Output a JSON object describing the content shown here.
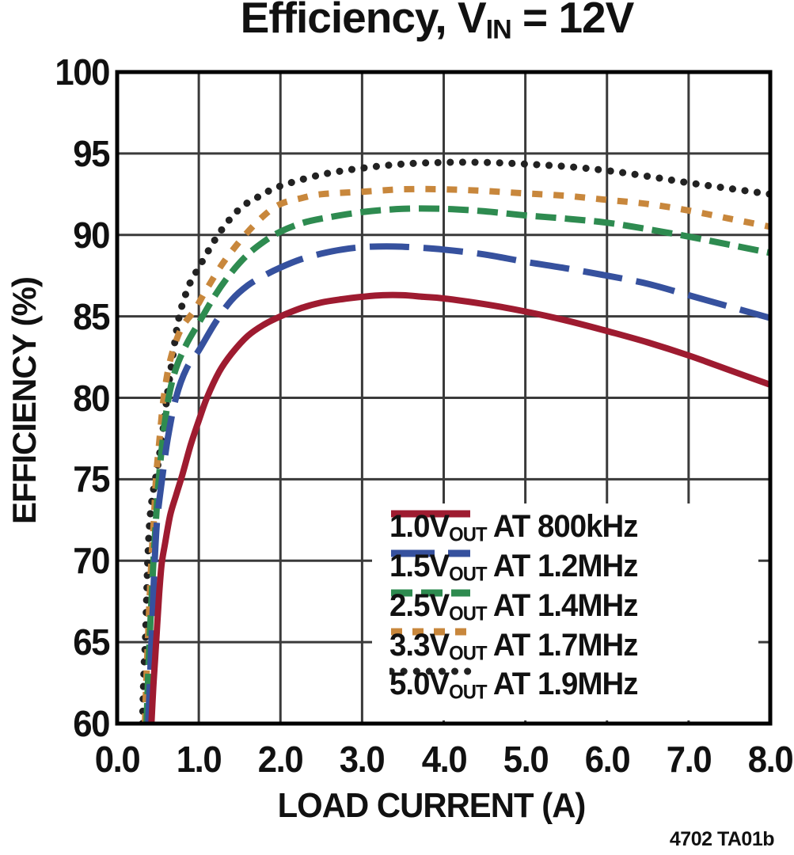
{
  "title": {
    "prefix": "Efficiency, V",
    "sub": "IN",
    "suffix": " = 12V"
  },
  "watermark": "4702 TA01b",
  "colors": {
    "frame": "#000000",
    "grid": "#3a3a3a",
    "background": "#ffffff"
  },
  "chart_data": {
    "type": "line",
    "title": "Efficiency, VIN = 12V",
    "xlabel": "LOAD CURRENT (A)",
    "ylabel": "EFFICIENCY (%)",
    "xlim": [
      0.0,
      8.0
    ],
    "ylim": [
      60,
      100
    ],
    "x_ticks": [
      "0.0",
      "1.0",
      "2.0",
      "3.0",
      "4.0",
      "5.0",
      "6.0",
      "7.0",
      "8.0"
    ],
    "y_ticks": [
      "100",
      "95",
      "90",
      "85",
      "80",
      "75",
      "70",
      "65",
      "60"
    ],
    "grid": true,
    "legend_position": "lower right",
    "series": [
      {
        "name": "1.0VOUT AT 800kHz",
        "label": {
          "v": "1.0V",
          "sub": "OUT",
          "rest": " AT 800kHz"
        },
        "color": "#9E1B30",
        "dash": "solid",
        "points": [
          [
            0.42,
            60
          ],
          [
            0.44,
            62
          ],
          [
            0.465,
            64
          ],
          [
            0.49,
            66
          ],
          [
            0.515,
            68
          ],
          [
            0.545,
            69.8
          ],
          [
            0.585,
            71
          ],
          [
            0.65,
            72.8
          ],
          [
            0.72,
            74
          ],
          [
            0.8,
            75.3
          ],
          [
            0.9,
            77.1
          ],
          [
            1.0,
            78.6
          ],
          [
            1.1,
            80
          ],
          [
            1.25,
            81.6
          ],
          [
            1.4,
            82.7
          ],
          [
            1.6,
            83.8
          ],
          [
            1.8,
            84.5
          ],
          [
            2.0,
            85.0
          ],
          [
            2.25,
            85.5
          ],
          [
            2.5,
            85.85
          ],
          [
            2.75,
            86.05
          ],
          [
            3.0,
            86.2
          ],
          [
            3.25,
            86.3
          ],
          [
            3.5,
            86.3
          ],
          [
            3.75,
            86.2
          ],
          [
            4.0,
            86.1
          ],
          [
            4.5,
            85.75
          ],
          [
            5.0,
            85.3
          ],
          [
            5.5,
            84.75
          ],
          [
            6.0,
            84.1
          ],
          [
            6.5,
            83.4
          ],
          [
            7.0,
            82.6
          ],
          [
            7.5,
            81.7
          ],
          [
            8.0,
            80.8
          ]
        ]
      },
      {
        "name": "1.5VOUT AT 1.2MHz",
        "label": {
          "v": "1.5V",
          "sub": "OUT",
          "rest": " AT 1.2MHz"
        },
        "color": "#36519E",
        "dash": "long-dash",
        "points": [
          [
            0.38,
            60
          ],
          [
            0.4,
            62.5
          ],
          [
            0.42,
            65
          ],
          [
            0.44,
            67.5
          ],
          [
            0.46,
            70
          ],
          [
            0.49,
            72.5
          ],
          [
            0.55,
            75
          ],
          [
            0.62,
            77.5
          ],
          [
            0.72,
            80
          ],
          [
            0.85,
            81.8
          ],
          [
            1.0,
            82.9
          ],
          [
            1.2,
            84.6
          ],
          [
            1.4,
            86.0
          ],
          [
            1.6,
            86.9
          ],
          [
            1.8,
            87.5
          ],
          [
            2.0,
            88.0
          ],
          [
            2.25,
            88.5
          ],
          [
            2.5,
            88.85
          ],
          [
            2.75,
            89.1
          ],
          [
            3.0,
            89.25
          ],
          [
            3.3,
            89.3
          ],
          [
            3.6,
            89.25
          ],
          [
            4.0,
            89.1
          ],
          [
            4.5,
            88.8
          ],
          [
            5.0,
            88.35
          ],
          [
            5.5,
            87.95
          ],
          [
            6.0,
            87.5
          ],
          [
            6.5,
            87.0
          ],
          [
            7.0,
            86.3
          ],
          [
            7.5,
            85.6
          ],
          [
            8.0,
            84.9
          ]
        ]
      },
      {
        "name": "2.5VOUT AT 1.4MHz",
        "label": {
          "v": "2.5V",
          "sub": "OUT",
          "rest": " AT 1.4MHz"
        },
        "color": "#2E8B50",
        "dash": "dash",
        "points": [
          [
            0.36,
            60
          ],
          [
            0.38,
            63
          ],
          [
            0.4,
            65.5
          ],
          [
            0.425,
            68
          ],
          [
            0.45,
            70.5
          ],
          [
            0.475,
            72.5
          ],
          [
            0.51,
            75
          ],
          [
            0.56,
            77.5
          ],
          [
            0.63,
            80
          ],
          [
            0.72,
            81.8
          ],
          [
            0.85,
            83.3
          ],
          [
            1.0,
            84.6
          ],
          [
            1.2,
            86.3
          ],
          [
            1.4,
            87.7
          ],
          [
            1.6,
            88.8
          ],
          [
            1.8,
            89.6
          ],
          [
            2.0,
            90.2
          ],
          [
            2.25,
            90.7
          ],
          [
            2.5,
            91.0
          ],
          [
            3.0,
            91.4
          ],
          [
            3.5,
            91.6
          ],
          [
            4.0,
            91.6
          ],
          [
            4.5,
            91.45
          ],
          [
            5.0,
            91.2
          ],
          [
            5.5,
            91.0
          ],
          [
            6.0,
            90.75
          ],
          [
            6.5,
            90.35
          ],
          [
            7.0,
            89.9
          ],
          [
            7.5,
            89.4
          ],
          [
            8.0,
            88.9
          ]
        ]
      },
      {
        "name": "3.3VOUT AT 1.7MHz",
        "label": {
          "v": "3.3V",
          "sub": "OUT",
          "rest": " AT 1.7MHz"
        },
        "color": "#C8873C",
        "dash": "short-dash",
        "points": [
          [
            0.34,
            60
          ],
          [
            0.36,
            63
          ],
          [
            0.38,
            65.5
          ],
          [
            0.4,
            68
          ],
          [
            0.425,
            70.5
          ],
          [
            0.45,
            72.5
          ],
          [
            0.475,
            75
          ],
          [
            0.52,
            77.5
          ],
          [
            0.57,
            80
          ],
          [
            0.65,
            82.3
          ],
          [
            0.78,
            84.2
          ],
          [
            0.95,
            85.4
          ],
          [
            1.1,
            86.7
          ],
          [
            1.3,
            88.3
          ],
          [
            1.55,
            89.9
          ],
          [
            1.8,
            91.2
          ],
          [
            2.0,
            91.9
          ],
          [
            2.25,
            92.25
          ],
          [
            2.5,
            92.5
          ],
          [
            3.0,
            92.65
          ],
          [
            3.5,
            92.8
          ],
          [
            4.0,
            92.8
          ],
          [
            4.5,
            92.7
          ],
          [
            5.0,
            92.55
          ],
          [
            5.5,
            92.4
          ],
          [
            6.0,
            92.15
          ],
          [
            6.5,
            91.9
          ],
          [
            7.0,
            91.5
          ],
          [
            7.5,
            91.0
          ],
          [
            8.0,
            90.5
          ]
        ]
      },
      {
        "name": "5.0VOUT AT 1.9MHz",
        "label": {
          "v": "5.0V",
          "sub": "OUT",
          "rest": " AT 1.9MHz"
        },
        "color": "#222222",
        "dash": "dot",
        "points": [
          [
            0.31,
            60
          ],
          [
            0.33,
            63.5
          ],
          [
            0.345,
            65
          ],
          [
            0.36,
            67.5
          ],
          [
            0.375,
            70
          ],
          [
            0.4,
            72.5
          ],
          [
            0.44,
            74.2
          ],
          [
            0.49,
            75.6
          ],
          [
            0.55,
            77.6
          ],
          [
            0.61,
            80
          ],
          [
            0.68,
            82.5
          ],
          [
            0.76,
            85
          ],
          [
            0.88,
            86.9
          ],
          [
            1.0,
            88.0
          ],
          [
            1.25,
            90.1
          ],
          [
            1.5,
            91.6
          ],
          [
            1.75,
            92.4
          ],
          [
            2.0,
            93.0
          ],
          [
            2.5,
            93.7
          ],
          [
            3.0,
            94.1
          ],
          [
            3.5,
            94.35
          ],
          [
            4.0,
            94.45
          ],
          [
            4.5,
            94.45
          ],
          [
            5.0,
            94.35
          ],
          [
            5.5,
            94.2
          ],
          [
            6.0,
            93.95
          ],
          [
            6.5,
            93.6
          ],
          [
            7.0,
            93.2
          ],
          [
            7.5,
            92.85
          ],
          [
            8.0,
            92.5
          ]
        ]
      }
    ]
  }
}
